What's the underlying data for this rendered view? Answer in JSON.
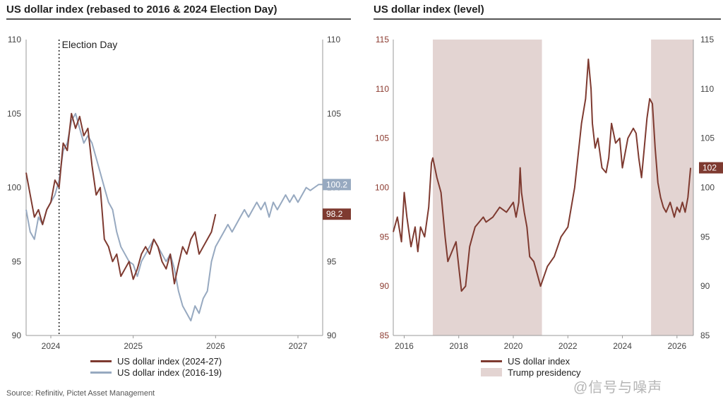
{
  "left_panel": {
    "title": "US dollar index (rebased to 2016 & 2024 Election Day)",
    "annotation": "Election Day",
    "legend": [
      {
        "label": "US dollar index (2024-27)",
        "color": "#7e3a30"
      },
      {
        "label": "US dollar index (2016-19)",
        "color": "#97a9c0"
      }
    ],
    "end_labels": [
      "100.2",
      "98.2"
    ]
  },
  "right_panel": {
    "title": "US dollar index (level)",
    "legend": [
      {
        "label": "US dollar index",
        "color": "#7e3a30"
      },
      {
        "label": "Trump presidency",
        "color": "#e3d4d2"
      }
    ],
    "end_label": "102"
  },
  "source": "Source: Refinitiv, Pictet Asset Management",
  "watermark": "@信号与噪声",
  "chart_data": [
    {
      "type": "line",
      "title": "US dollar index (rebased to 2016 & 2024 Election Day)",
      "ylim": [
        90,
        110
      ],
      "yticks": [
        90,
        95,
        100,
        105,
        110
      ],
      "xlim": [
        2023.7,
        2027.3
      ],
      "xticks": [
        "2024",
        "2025",
        "2026",
        "2027"
      ],
      "election_day": 2024.1,
      "series": [
        {
          "name": "US dollar index (2024-27)",
          "color": "#7e3a30",
          "x": [
            2023.7,
            2023.75,
            2023.8,
            2023.85,
            2023.9,
            2023.95,
            2024.0,
            2024.05,
            2024.1,
            2024.15,
            2024.2,
            2024.25,
            2024.3,
            2024.35,
            2024.4,
            2024.45,
            2024.5,
            2024.55,
            2024.6,
            2024.65,
            2024.7,
            2024.75,
            2024.8,
            2024.85,
            2024.9,
            2024.95,
            2025.0,
            2025.05,
            2025.1,
            2025.15,
            2025.2,
            2025.25,
            2025.3,
            2025.35,
            2025.4,
            2025.45,
            2025.5,
            2025.55,
            2025.6,
            2025.65,
            2025.7,
            2025.75,
            2025.8,
            2025.85,
            2025.9,
            2025.95,
            2026.0
          ],
          "values": [
            101.0,
            99.5,
            98.0,
            98.5,
            97.5,
            98.5,
            99.0,
            100.5,
            100.0,
            103.0,
            102.5,
            105.0,
            104.0,
            104.8,
            103.5,
            104.0,
            101.5,
            99.5,
            100.0,
            96.5,
            96.0,
            95.0,
            95.5,
            94.0,
            94.5,
            95.0,
            93.8,
            94.5,
            95.5,
            96.0,
            95.5,
            96.5,
            96.0,
            95.0,
            94.5,
            95.5,
            93.5,
            94.8,
            96.0,
            95.5,
            96.5,
            97.0,
            95.5,
            96.0,
            96.5,
            97.0,
            98.2
          ]
        },
        {
          "name": "US dollar index (2016-19)",
          "color": "#97a9c0",
          "x": [
            2023.7,
            2023.75,
            2023.8,
            2023.85,
            2023.9,
            2023.95,
            2024.0,
            2024.05,
            2024.1,
            2024.15,
            2024.2,
            2024.25,
            2024.3,
            2024.35,
            2024.4,
            2024.45,
            2024.5,
            2024.55,
            2024.6,
            2024.65,
            2024.7,
            2024.75,
            2024.8,
            2024.85,
            2024.9,
            2024.95,
            2025.0,
            2025.05,
            2025.1,
            2025.15,
            2025.2,
            2025.25,
            2025.3,
            2025.35,
            2025.4,
            2025.45,
            2025.5,
            2025.55,
            2025.6,
            2025.65,
            2025.7,
            2025.75,
            2025.8,
            2025.85,
            2025.9,
            2025.95,
            2026.0,
            2026.05,
            2026.1,
            2026.15,
            2026.2,
            2026.25,
            2026.3,
            2026.35,
            2026.4,
            2026.45,
            2026.5,
            2026.55,
            2026.6,
            2026.65,
            2026.7,
            2026.75,
            2026.8,
            2026.85,
            2026.9,
            2026.95,
            2027.0,
            2027.05,
            2027.1,
            2027.15,
            2027.2,
            2027.25,
            2027.3
          ],
          "values": [
            98.5,
            97.0,
            96.5,
            98.0,
            97.5,
            98.5,
            99.0,
            99.5,
            100.5,
            102.5,
            103.0,
            104.5,
            105.0,
            104.0,
            103.0,
            103.5,
            103.0,
            102.0,
            101.0,
            100.0,
            99.0,
            98.5,
            97.0,
            96.0,
            95.5,
            95.0,
            94.8,
            94.0,
            95.0,
            95.5,
            96.0,
            96.5,
            96.0,
            95.5,
            95.0,
            95.5,
            94.5,
            93.0,
            92.0,
            91.5,
            91.0,
            92.0,
            91.5,
            92.5,
            93.0,
            95.0,
            96.0,
            96.5,
            97.0,
            97.5,
            97.0,
            97.5,
            98.0,
            98.5,
            98.0,
            98.5,
            99.0,
            98.5,
            99.0,
            98.0,
            99.0,
            98.5,
            99.0,
            99.5,
            99.0,
            99.5,
            99.0,
            99.5,
            100.0,
            99.8,
            100.0,
            100.2,
            100.2
          ]
        }
      ]
    },
    {
      "type": "line",
      "title": "US dollar index (level)",
      "ylim": [
        85,
        115
      ],
      "yticks": [
        85,
        90,
        95,
        100,
        105,
        110,
        115
      ],
      "xlim": [
        2015.6,
        2026.6
      ],
      "xticks": [
        "2016",
        "2018",
        "2020",
        "2022",
        "2024",
        "2026"
      ],
      "shaded_periods": [
        [
          2017.05,
          2021.05
        ],
        [
          2025.05,
          2026.6
        ]
      ],
      "series": [
        {
          "name": "US dollar index",
          "color": "#7e3a30",
          "x": [
            2015.6,
            2015.75,
            2015.9,
            2016.0,
            2016.1,
            2016.25,
            2016.4,
            2016.5,
            2016.6,
            2016.75,
            2016.9,
            2017.0,
            2017.05,
            2017.2,
            2017.35,
            2017.5,
            2017.6,
            2017.75,
            2017.9,
            2018.0,
            2018.1,
            2018.25,
            2018.4,
            2018.5,
            2018.6,
            2018.75,
            2018.9,
            2019.0,
            2019.25,
            2019.5,
            2019.75,
            2020.0,
            2020.1,
            2020.2,
            2020.25,
            2020.3,
            2020.4,
            2020.5,
            2020.6,
            2020.75,
            2020.9,
            2021.0,
            2021.25,
            2021.5,
            2021.75,
            2022.0,
            2022.25,
            2022.5,
            2022.65,
            2022.75,
            2022.85,
            2022.9,
            2023.0,
            2023.1,
            2023.25,
            2023.4,
            2023.5,
            2023.6,
            2023.75,
            2023.9,
            2024.0,
            2024.2,
            2024.4,
            2024.5,
            2024.6,
            2024.7,
            2024.8,
            2024.9,
            2025.0,
            2025.1,
            2025.2,
            2025.3,
            2025.4,
            2025.5,
            2025.6,
            2025.75,
            2025.9,
            2026.0,
            2026.1,
            2026.2,
            2026.3,
            2026.4,
            2026.5
          ],
          "values": [
            95.5,
            97.0,
            94.5,
            99.5,
            97.0,
            94.0,
            96.0,
            93.5,
            96.0,
            95.0,
            98.0,
            102.5,
            103.0,
            101.0,
            99.5,
            95.0,
            92.5,
            93.5,
            94.5,
            92.0,
            89.5,
            90.0,
            94.0,
            95.0,
            96.0,
            96.5,
            97.0,
            96.5,
            97.0,
            98.0,
            97.5,
            98.5,
            97.0,
            98.5,
            102.0,
            99.5,
            97.5,
            96.0,
            93.0,
            92.5,
            91.0,
            90.0,
            92.0,
            93.0,
            95.0,
            96.0,
            100.0,
            106.5,
            109.0,
            113.0,
            110.0,
            106.5,
            104.0,
            105.0,
            102.0,
            101.5,
            103.0,
            106.5,
            104.5,
            105.0,
            102.0,
            105.0,
            106.0,
            105.5,
            103.0,
            101.0,
            104.0,
            107.0,
            109.0,
            108.5,
            104.0,
            100.5,
            99.0,
            98.0,
            97.5,
            98.5,
            97.0,
            98.0,
            97.5,
            98.5,
            97.5,
            99.0,
            102.0
          ]
        }
      ]
    }
  ]
}
